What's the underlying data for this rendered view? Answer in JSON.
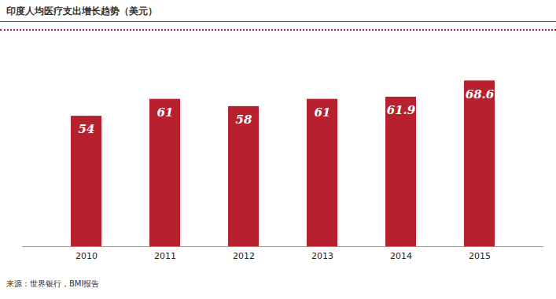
{
  "chart_data": {
    "type": "bar",
    "title": "印度人均医疗支出增长趋势（美元）",
    "source": "来源：世界银行，BMI报告",
    "categories": [
      "2010",
      "2011",
      "2012",
      "2013",
      "2014",
      "2015"
    ],
    "values": [
      54,
      61,
      58,
      61,
      61.9,
      68.6
    ],
    "color": "#b7202e",
    "ylim": [
      0,
      70
    ],
    "yticks": [
      0,
      70
    ],
    "grid": false,
    "tick_labels": "x",
    "data_labels": true
  }
}
